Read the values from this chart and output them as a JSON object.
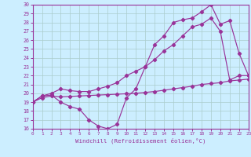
{
  "xlabel": "Windchill (Refroidissement éolien,°C)",
  "bg_color": "#cceeff",
  "line_color": "#993399",
  "grid_color": "#aacccc",
  "xlim": [
    0,
    23
  ],
  "ylim": [
    16,
    30
  ],
  "yticks": [
    16,
    17,
    18,
    19,
    20,
    21,
    22,
    23,
    24,
    25,
    26,
    27,
    28,
    29,
    30
  ],
  "xticks": [
    0,
    1,
    2,
    3,
    4,
    5,
    6,
    7,
    8,
    9,
    10,
    11,
    12,
    13,
    14,
    15,
    16,
    17,
    18,
    19,
    20,
    21,
    22,
    23
  ],
  "series1_x": [
    0,
    1,
    2,
    3,
    4,
    5,
    6,
    7,
    8,
    9,
    10,
    11,
    12,
    13,
    14,
    15,
    16,
    17,
    18,
    19,
    20,
    21,
    22,
    23
  ],
  "series1_y": [
    19.0,
    19.5,
    19.7,
    19.6,
    19.65,
    19.7,
    19.75,
    19.8,
    19.85,
    19.9,
    19.95,
    20.0,
    20.1,
    20.2,
    20.35,
    20.5,
    20.65,
    20.8,
    21.0,
    21.1,
    21.2,
    21.4,
    21.5,
    21.6
  ],
  "series2_x": [
    0,
    1,
    2,
    3,
    4,
    5,
    6,
    7,
    8,
    9,
    10,
    11,
    12,
    13,
    14,
    15,
    16,
    17,
    18,
    19,
    20,
    21,
    22,
    23
  ],
  "series2_y": [
    19.0,
    19.7,
    20.0,
    20.5,
    20.3,
    20.2,
    20.2,
    20.5,
    20.8,
    21.2,
    22.0,
    22.5,
    23.0,
    23.8,
    24.8,
    25.5,
    26.5,
    27.5,
    27.8,
    28.5,
    27.0,
    21.5,
    22.0,
    22.0
  ],
  "series3_x": [
    0,
    1,
    2,
    3,
    4,
    5,
    6,
    7,
    8,
    9,
    10,
    11,
    12,
    13,
    14,
    15,
    16,
    17,
    18,
    19,
    20,
    21,
    22,
    23
  ],
  "series3_y": [
    19.0,
    19.7,
    19.8,
    19.0,
    18.5,
    18.2,
    17.0,
    16.3,
    16.0,
    16.5,
    19.5,
    20.5,
    23.0,
    25.5,
    26.5,
    28.0,
    28.3,
    28.5,
    29.2,
    30.0,
    27.8,
    28.2,
    24.5,
    22.0
  ]
}
